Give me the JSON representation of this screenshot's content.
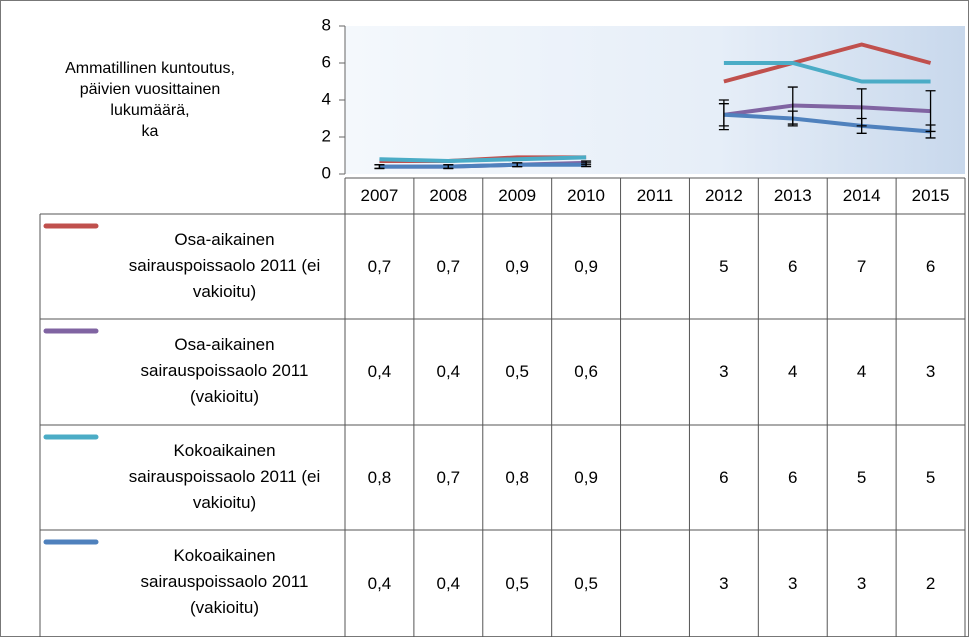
{
  "chart_data": {
    "type": "line",
    "y_label_lines": [
      "Ammatillinen kuntoutus,",
      "päivien vuosittainen",
      "lukumäärä,",
      "ka"
    ],
    "categories": [
      "2007",
      "2008",
      "2009",
      "2010",
      "2011",
      "2012",
      "2013",
      "2014",
      "2015"
    ],
    "ylim": [
      0,
      8
    ],
    "yticks": [
      0,
      2,
      4,
      6,
      8
    ],
    "series": [
      {
        "name": "Osa-aikainen sairauspoissaolo 2011 (ei vakioitu)",
        "color": "#c0504d",
        "values": [
          0.7,
          0.7,
          0.9,
          0.9,
          null,
          5,
          6,
          7,
          6
        ],
        "value_labels": [
          "0,7",
          "0,7",
          "0,9",
          "0,9",
          null,
          "5",
          "6",
          "7",
          "6"
        ]
      },
      {
        "name": "Osa-aikainen sairauspoissaolo 2011 (vakioitu)",
        "color": "#8064a2",
        "values": [
          0.4,
          0.4,
          0.5,
          0.6,
          null,
          3.2,
          3.7,
          3.6,
          3.4
        ],
        "errors": [
          0.1,
          0.1,
          0.1,
          0.1,
          null,
          0.8,
          1.0,
          1.0,
          1.1
        ],
        "value_labels": [
          "0,4",
          "0,4",
          "0,5",
          "0,6",
          null,
          "3",
          "4",
          "4",
          "3"
        ]
      },
      {
        "name": "Kokoaikainen sairauspoissaolo 2011 (ei vakioitu)",
        "color": "#4bacc6",
        "values": [
          0.8,
          0.7,
          0.8,
          0.9,
          null,
          6,
          6,
          5,
          5
        ],
        "value_labels": [
          "0,8",
          "0,7",
          "0,8",
          "0,9",
          null,
          "6",
          "6",
          "5",
          "5"
        ]
      },
      {
        "name": "Kokoaikainen sairauspoissaolo 2011 (vakioitu)",
        "color": "#4f81bd",
        "values": [
          0.4,
          0.4,
          0.5,
          0.5,
          null,
          3.2,
          3.0,
          2.6,
          2.3
        ],
        "errors": [
          0.1,
          0.1,
          0.1,
          0.1,
          null,
          0.6,
          0.4,
          0.4,
          0.35
        ],
        "value_labels": [
          "0,4",
          "0,4",
          "0,5",
          "0,5",
          null,
          "3",
          "3",
          "3",
          "2"
        ]
      }
    ]
  }
}
